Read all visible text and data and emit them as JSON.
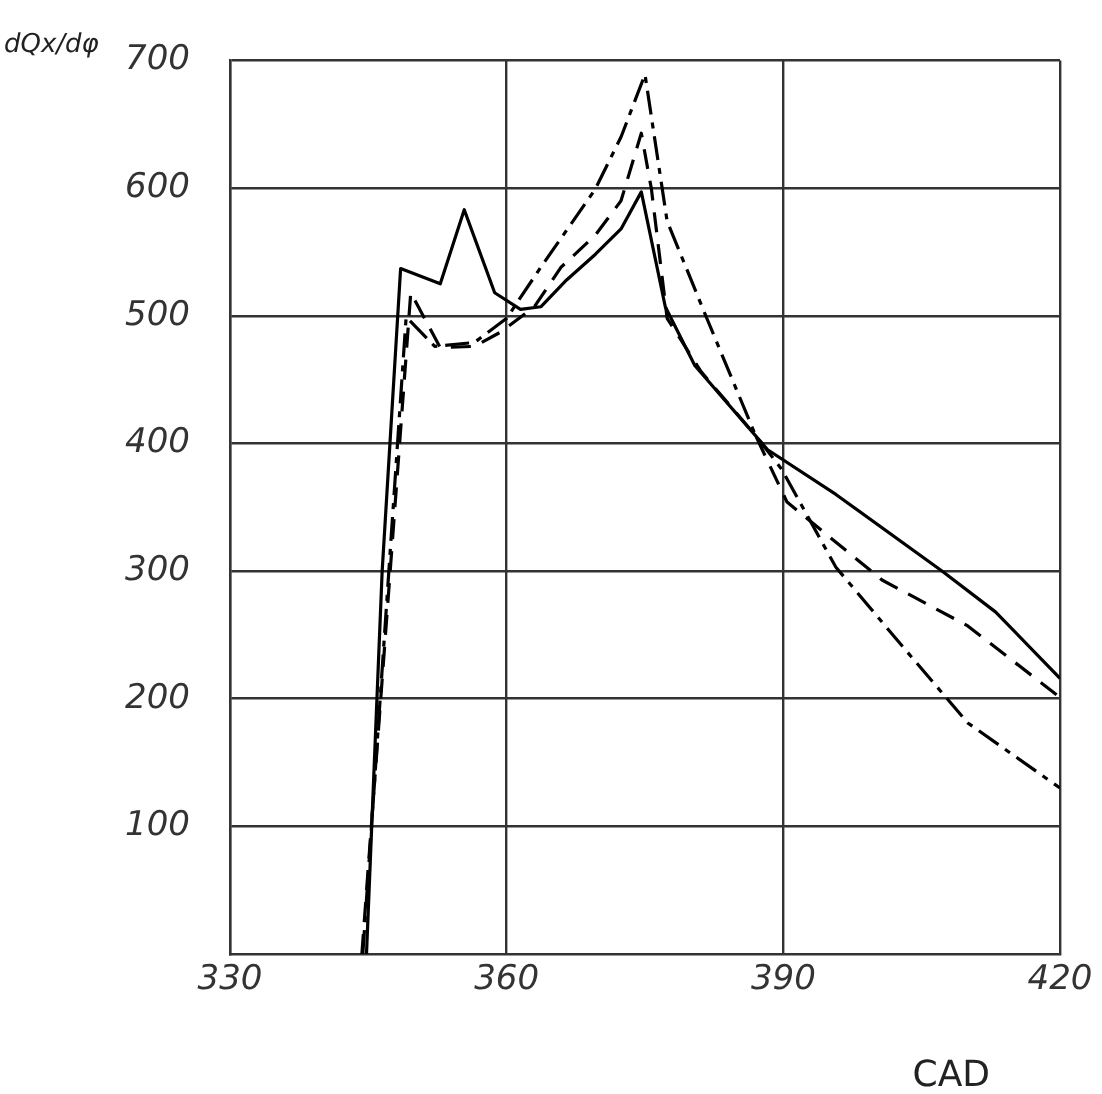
{
  "chart_data": {
    "type": "line",
    "ylabel": "dQx/dφ",
    "xlabel": "CAD",
    "xlim": [
      330,
      420
    ],
    "xticks": [
      330,
      360,
      390,
      420
    ],
    "ylim": [
      0,
      700
    ],
    "yticks": [
      100,
      200,
      300,
      400,
      500,
      600,
      700
    ],
    "grid": true,
    "marker": "none",
    "series": [
      {
        "color": "#000000",
        "line_style": "solid",
        "x": [
          344.8,
          346.5,
          348.5,
          352.8,
          355.4,
          358.7,
          361.5,
          363.7,
          366.5,
          369.6,
          372.4,
          374.6,
          377.2,
          380.4,
          388.3,
          395.7,
          407.2,
          413,
          420
        ],
        "values": [
          0,
          300,
          537,
          525,
          583,
          518,
          505,
          507,
          528,
          548,
          568,
          597,
          507,
          461,
          395,
          360,
          300,
          268,
          216
        ]
      },
      {
        "color": "#000000",
        "line_style": "dashed",
        "x": [
          344.3,
          349.6,
          352.8,
          356.5,
          359.3,
          363,
          365.9,
          369.6,
          372.4,
          374.6,
          375.7,
          377.4,
          381.1,
          387,
          390.4,
          400.7,
          410,
          420
        ],
        "values": [
          0,
          518,
          475,
          476,
          487,
          507,
          538,
          563,
          590,
          643,
          599,
          498,
          456,
          406,
          354,
          293,
          257,
          201
        ]
      },
      {
        "color": "#000000",
        "line_style": "dashdot",
        "x": [
          344.4,
          349.1,
          352.2,
          356.5,
          360,
          363.7,
          369.6,
          372.4,
          375,
          377.4,
          381.7,
          387,
          389.8,
          395.7,
          402.8,
          410,
          420
        ],
        "values": [
          0,
          499,
          476,
          479,
          498,
          538,
          599,
          640,
          689,
          574,
          498,
          406,
          380,
          303,
          242,
          181,
          130
        ]
      }
    ]
  }
}
